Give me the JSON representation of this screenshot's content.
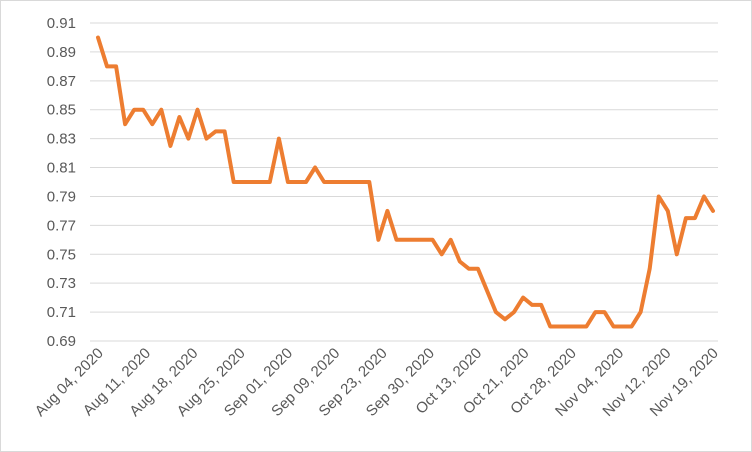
{
  "chart_data": {
    "type": "line",
    "title": "",
    "xlabel": "",
    "ylabel": "",
    "ylim": [
      0.69,
      0.91
    ],
    "yticks": [
      "0.69",
      "0.71",
      "0.73",
      "0.75",
      "0.77",
      "0.79",
      "0.81",
      "0.83",
      "0.85",
      "0.87",
      "0.89",
      "0.91"
    ],
    "xtick_labels": [
      "Aug 04, 2020",
      "Aug 11, 2020",
      "Aug 18, 2020",
      "Aug 25, 2020",
      "Sep 01, 2020",
      "Sep 09, 2020",
      "Sep 23, 2020",
      "Sep 30, 2020",
      "Oct 13, 2020",
      "Oct 21, 2020",
      "Oct 28, 2020",
      "Nov 04, 2020",
      "Nov 12, 2020",
      "Nov 19, 2020"
    ],
    "grid": true,
    "legend": "none",
    "series": [
      {
        "color": "#ED7D31",
        "values": [
          0.9,
          0.88,
          0.88,
          0.84,
          0.85,
          0.85,
          0.84,
          0.85,
          0.825,
          0.845,
          0.83,
          0.85,
          0.83,
          0.835,
          0.835,
          0.8,
          0.8,
          0.8,
          0.8,
          0.8,
          0.83,
          0.8,
          0.8,
          0.8,
          0.81,
          0.8,
          0.8,
          0.8,
          0.8,
          0.8,
          0.8,
          0.76,
          0.78,
          0.76,
          0.76,
          0.76,
          0.76,
          0.76,
          0.75,
          0.76,
          0.745,
          0.74,
          0.74,
          0.725,
          0.71,
          0.705,
          0.71,
          0.72,
          0.715,
          0.715,
          0.7,
          0.7,
          0.7,
          0.7,
          0.7,
          0.71,
          0.71,
          0.7,
          0.7,
          0.7,
          0.71,
          0.74,
          0.79,
          0.78,
          0.75,
          0.775,
          0.775,
          0.79,
          0.78
        ]
      }
    ]
  }
}
